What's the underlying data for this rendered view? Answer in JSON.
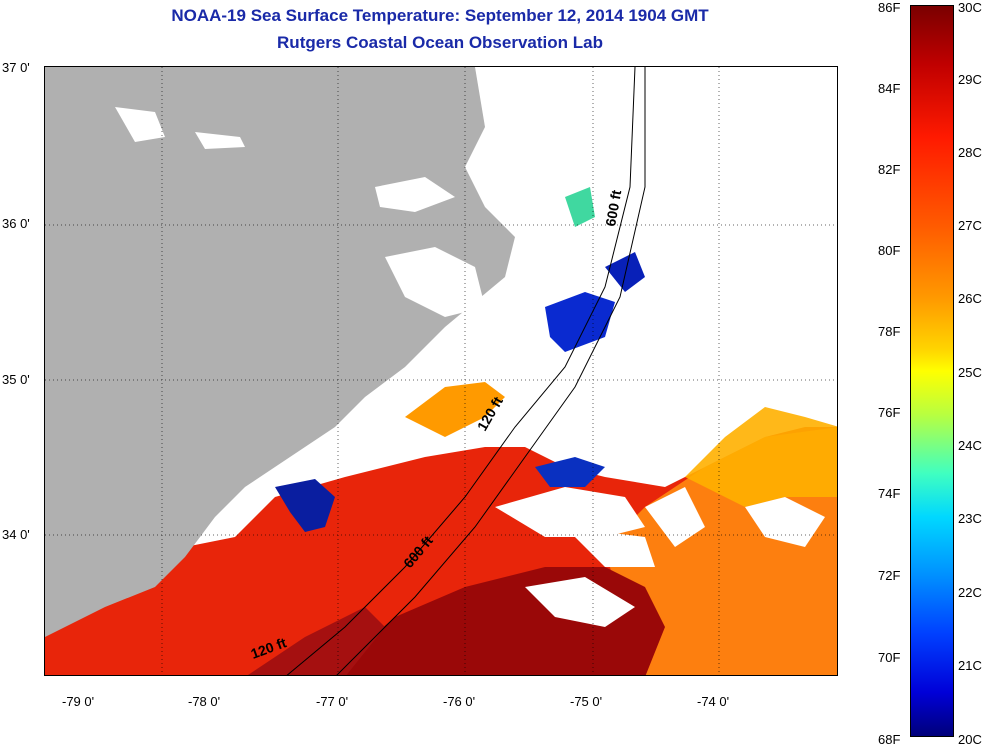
{
  "title_line1": "NOAA-19 Sea Surface Temperature:  September 12, 2014 1904 GMT",
  "title_line2": "Rutgers Coastal Ocean Observation Lab",
  "lat_labels": [
    "37 0'",
    "36 0'",
    "35 0'",
    "34 0'"
  ],
  "lon_labels": [
    "-79 0'",
    "-78 0'",
    "-77 0'",
    "-76 0'",
    "-75 0'",
    "-74 0'"
  ],
  "isobath_labels": [
    "600 ft",
    "120 ft",
    "600 ft",
    "120 ft"
  ],
  "colorbar": {
    "fahrenheit": [
      "86F",
      "84F",
      "82F",
      "80F",
      "78F",
      "76F",
      "74F",
      "72F",
      "70F",
      "68F"
    ],
    "celsius": [
      "30C",
      "29C",
      "28C",
      "27C",
      "26C",
      "25C",
      "24C",
      "23C",
      "22C",
      "21C",
      "20C"
    ]
  },
  "colors": {
    "title": "#1a2aa8",
    "land": "#b0b0b0",
    "warm_water": "#e8200a",
    "hot_water": "#9a0808",
    "cool_water": "#ff9a00",
    "cold_water": "#0a1ea0"
  }
}
